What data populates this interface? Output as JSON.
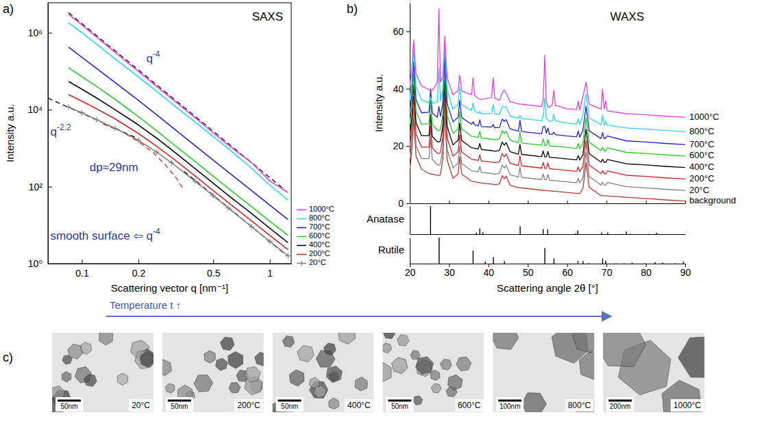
{
  "chart_data": [
    {
      "type": "line",
      "panel_label": "a)",
      "title": "SAXS",
      "x_label": "Scattering vector q [nm⁻¹]",
      "y_label": "Intensity a.u.",
      "log": true,
      "legend": "right",
      "xlim": [
        0.066,
        1.3
      ],
      "ylim": [
        1,
        6000000
      ],
      "xticks": [
        0.1,
        0.2,
        0.5,
        1
      ],
      "yticks": [
        {
          "value": 1,
          "label": "10⁰"
        },
        {
          "value": 100,
          "label": "10²"
        },
        {
          "value": 10000,
          "label": "10⁴"
        },
        {
          "value": 1000000,
          "label": "10⁶"
        }
      ],
      "x": [
        0.085,
        0.1,
        0.12,
        0.15,
        0.2,
        0.25,
        0.3,
        0.4,
        0.5,
        0.6,
        0.8,
        1.0,
        1.25
      ],
      "series": [
        {
          "name": "1000°C",
          "color": "#e040e0",
          "values": [
            3000000,
            1600000,
            760000,
            310000,
            98000,
            40000,
            19500,
            6200,
            2500,
            1200,
            420,
            140,
            70
          ]
        },
        {
          "name": "800°C",
          "color": "#20d8f0",
          "values": [
            1800000,
            1000000,
            500000,
            210000,
            71000,
            30000,
            14500,
            4800,
            2000,
            980,
            300,
            110,
            45
          ]
        },
        {
          "name": "700°C",
          "color": "#2020d0",
          "values": [
            420000,
            230000,
            117000,
            51000,
            17400,
            7400,
            3600,
            1170,
            490,
            240,
            79,
            33,
            14
          ]
        },
        {
          "name": "600°C",
          "color": "#20d020",
          "values": [
            123000,
            72000,
            40000,
            18600,
            6600,
            2800,
            1380,
            450,
            186,
            91,
            30,
            12.6,
            5.4
          ]
        },
        {
          "name": "400°C",
          "color": "#000000",
          "values": [
            54000,
            34000,
            20000,
            10000,
            4000,
            1820,
            910,
            295,
            123,
            60,
            20,
            8.3,
            3.5
          ]
        },
        {
          "name": "200°C",
          "color": "#e02020",
          "values": [
            24500,
            16600,
            10500,
            5800,
            2400,
            1120,
            575,
            190,
            79,
            39,
            12.9,
            5.4,
            2.3
          ]
        },
        {
          "name": "20°C",
          "color": "#808080",
          "marker": "plus",
          "values": [
            11700,
            8300,
            5500,
            3300,
            1600,
            790,
            420,
            138,
            58,
            28,
            9.1,
            3.8,
            1.6
          ]
        }
      ],
      "fits": [
        {
          "x": [
            0.085,
            1.2
          ],
          "values": [
            3300000,
            83
          ],
          "color": "#000000",
          "line_style": "dashed"
        },
        {
          "x": [
            0.066,
            0.2
          ],
          "values": [
            20000,
            1750
          ],
          "color": "#000000",
          "line_style": "dashed"
        },
        {
          "x": [
            0.35,
            1.2
          ],
          "values": [
            250,
            1.8
          ],
          "color": "#000000",
          "line_style": "dashed"
        },
        {
          "x": [
            0.13,
            0.16,
            0.2,
            0.24,
            0.28,
            0.32,
            0.35
          ],
          "values": [
            4200,
            2800,
            1500,
            760,
            355,
            160,
            80
          ],
          "color": "#e02020",
          "line_style": "dashed"
        }
      ],
      "annotations": [
        {
          "text": "q",
          "sup": "-4",
          "x": 0.22,
          "y": 200000,
          "color": "#2b3a9e"
        },
        {
          "text": "q",
          "sup": "-2.2",
          "x": 0.068,
          "y": 2500,
          "color": "#2b3a9e"
        },
        {
          "text": "dp≈29nm",
          "x": 0.11,
          "y": 300,
          "color": "#2b3a9e"
        },
        {
          "text": "smooth surface ⇦ q",
          "sup": "-4",
          "x": 0.068,
          "y": 5,
          "color": "#2b3a9e"
        }
      ]
    },
    {
      "type": "line",
      "panel_label": "b)",
      "title": "WAXS",
      "y_label": "Intensity a.u.",
      "legend": "right",
      "tick_labels": "y",
      "xlim": [
        20,
        90
      ],
      "ylim": [
        0,
        70
      ],
      "xticks": [
        20,
        30,
        40,
        50,
        60,
        70,
        80,
        90
      ],
      "yticks": [
        0,
        20,
        40,
        60
      ],
      "x": [
        20,
        20.5,
        21,
        21.6,
        23,
        24.9,
        25.3,
        25.7,
        27,
        27.4,
        27.8,
        28.4,
        28.9,
        29.5,
        31,
        32.3,
        32.7,
        33.2,
        35.7,
        36.1,
        36.5,
        37.4,
        37.8,
        38.2,
        40.8,
        41.2,
        41.6,
        42.8,
        43.5,
        44,
        44.5,
        45.5,
        47.6,
        48,
        48.4,
        53.5,
        53.9,
        54.3,
        54.7,
        55.1,
        55.5,
        56.2,
        56.6,
        57,
        60,
        62.4,
        62.8,
        63.2,
        64,
        64.8,
        65.6,
        68.6,
        69,
        69.4,
        69.8,
        70.2,
        75,
        80,
        85,
        90
      ],
      "series": [
        {
          "name": "1000°C",
          "color": "#e040e0",
          "values": [
            41.0,
            46.3,
            57.0,
            45.1,
            41.0,
            39.6,
            39.5,
            39.4,
            42.0,
            67.9,
            42.3,
            44.0,
            58.3,
            43.7,
            37.9,
            39.4,
            44.7,
            39.2,
            37.9,
            43.8,
            37.7,
            36.5,
            36.4,
            36.3,
            36.9,
            43.8,
            36.7,
            36.0,
            38.6,
            39.6,
            38.4,
            35.5,
            34.7,
            34.6,
            34.6,
            33.8,
            35.8,
            51.7,
            35.7,
            33.6,
            33.6,
            34.3,
            39.4,
            34.2,
            33.0,
            32.7,
            35.7,
            32.6,
            37.3,
            42.3,
            34.6,
            32.9,
            39.9,
            32.8,
            35.8,
            32.3,
            31.3,
            30.9,
            30.4,
            30.0
          ]
        },
        {
          "name": "800°C",
          "color": "#20d8f0",
          "values": [
            36.0,
            41.9,
            53.8,
            40.6,
            36.1,
            35.1,
            37.2,
            34.9,
            35.4,
            47.0,
            35.7,
            39.6,
            55.5,
            39.3,
            32.9,
            34.6,
            40.5,
            34.4,
            32.4,
            35.0,
            32.2,
            31.5,
            32.0,
            31.3,
            31.4,
            34.4,
            31.2,
            31.0,
            33.9,
            33.7,
            33.7,
            30.5,
            29.7,
            30.7,
            29.6,
            28.8,
            30.3,
            36.8,
            29.6,
            29.2,
            28.6,
            28.9,
            31.1,
            28.8,
            28.0,
            27.7,
            29.5,
            27.6,
            30.9,
            38.4,
            29.8,
            27.4,
            30.8,
            27.3,
            28.6,
            27.3,
            26.3,
            25.9,
            25.4,
            25.0
          ]
        },
        {
          "name": "700°C",
          "color": "#2020d0",
          "values": [
            31.5,
            37.4,
            49.3,
            36.1,
            31.6,
            31.8,
            39.9,
            31.6,
            30.0,
            33.8,
            30.3,
            35.1,
            51.0,
            34.8,
            28.4,
            30.1,
            36.0,
            29.9,
            27.6,
            28.4,
            27.4,
            27.0,
            29.1,
            26.8,
            26.6,
            27.5,
            26.4,
            26.5,
            29.4,
            28.6,
            29.2,
            26.0,
            25.2,
            29.0,
            25.1,
            24.3,
            26.8,
            26.9,
            24.5,
            26.3,
            24.1,
            24.1,
            24.8,
            24.0,
            23.5,
            23.2,
            25.3,
            23.1,
            25.5,
            33.9,
            25.3,
            22.6,
            24.7,
            22.5,
            22.9,
            23.5,
            21.8,
            21.4,
            20.9,
            20.5
          ]
        },
        {
          "name": "600°C",
          "color": "#20d020",
          "values": [
            27.5,
            33.4,
            45.3,
            32.1,
            27.6,
            27.8,
            35.9,
            27.6,
            25.5,
            25.4,
            25.8,
            31.1,
            47.0,
            30.8,
            24.4,
            26.1,
            32.0,
            25.9,
            23.4,
            23.3,
            23.2,
            23.0,
            25.1,
            22.8,
            22.4,
            22.3,
            22.2,
            22.5,
            25.4,
            24.3,
            25.2,
            22.0,
            21.2,
            25.0,
            21.1,
            20.3,
            22.5,
            20.2,
            20.2,
            22.3,
            20.1,
            20.0,
            19.9,
            19.9,
            19.5,
            19.2,
            20.9,
            19.1,
            21.0,
            29.9,
            21.3,
            18.4,
            19.5,
            18.3,
            18.3,
            19.4,
            17.8,
            17.4,
            16.9,
            16.5
          ]
        },
        {
          "name": "400°C",
          "color": "#000000",
          "values": [
            23.5,
            29.4,
            41.3,
            28.1,
            23.6,
            23.6,
            31.0,
            23.4,
            21.5,
            21.4,
            21.8,
            27.1,
            43.0,
            26.8,
            20.4,
            22.1,
            28.0,
            21.9,
            19.4,
            19.3,
            19.2,
            19.0,
            20.9,
            18.8,
            18.4,
            18.3,
            18.2,
            18.5,
            21.4,
            20.3,
            21.2,
            18.0,
            17.2,
            20.6,
            17.1,
            16.3,
            18.3,
            16.2,
            16.2,
            18.1,
            16.1,
            16.0,
            15.9,
            15.9,
            15.5,
            15.2,
            16.7,
            15.1,
            17.0,
            25.9,
            17.3,
            14.4,
            15.4,
            14.3,
            14.3,
            15.3,
            13.8,
            13.4,
            12.9,
            12.5
          ]
        },
        {
          "name": "200°C",
          "color": "#e02020",
          "values": [
            19.5,
            25.4,
            37.3,
            24.1,
            19.6,
            19.6,
            27.0,
            19.4,
            17.5,
            17.4,
            17.8,
            23.1,
            39.0,
            22.8,
            16.4,
            18.1,
            24.0,
            17.9,
            15.4,
            15.3,
            15.2,
            15.0,
            16.9,
            14.8,
            14.4,
            14.3,
            14.2,
            14.5,
            17.4,
            16.3,
            17.2,
            14.0,
            13.2,
            16.6,
            13.1,
            12.3,
            14.3,
            12.2,
            12.2,
            14.1,
            12.1,
            12.0,
            11.9,
            11.9,
            11.5,
            11.2,
            12.7,
            11.1,
            13.0,
            21.9,
            13.3,
            10.4,
            11.4,
            10.3,
            10.3,
            11.3,
            9.8,
            9.4,
            8.9,
            8.5
          ]
        },
        {
          "name": "20°C",
          "color": "#808080",
          "values": [
            15.5,
            21.4,
            33.3,
            20.1,
            15.6,
            15.6,
            23.0,
            15.4,
            13.5,
            13.4,
            13.8,
            19.1,
            35.0,
            18.8,
            12.4,
            14.1,
            20.0,
            13.9,
            11.4,
            11.3,
            11.2,
            11.0,
            12.9,
            10.8,
            10.4,
            10.3,
            10.2,
            10.5,
            13.4,
            12.3,
            13.2,
            10.0,
            9.2,
            12.6,
            9.1,
            8.3,
            10.3,
            8.2,
            8.2,
            10.1,
            8.1,
            8.0,
            7.9,
            7.9,
            7.5,
            7.2,
            8.7,
            7.1,
            9.0,
            17.9,
            9.3,
            6.4,
            7.4,
            6.3,
            6.3,
            7.3,
            5.8,
            5.4,
            4.9,
            4.5
          ]
        },
        {
          "name": "background",
          "color": "#b83a2e",
          "values": [
            11.8,
            17.7,
            29.6,
            16.4,
            11.9,
            10.4,
            10.3,
            10.2,
            9.8,
            9.7,
            10.1,
            15.4,
            31.3,
            15.1,
            8.7,
            10.4,
            16.3,
            10.2,
            7.7,
            7.6,
            7.5,
            7.3,
            7.2,
            7.1,
            6.7,
            6.6,
            6.5,
            6.8,
            9.7,
            8.6,
            9.5,
            6.3,
            5.5,
            5.4,
            5.4,
            4.6,
            4.6,
            4.5,
            4.5,
            4.4,
            4.4,
            4.3,
            4.2,
            4.2,
            3.8,
            3.5,
            3.5,
            3.4,
            5.3,
            14.2,
            5.6,
            2.7,
            2.7,
            2.6,
            2.6,
            2.6,
            2.1,
            1.7,
            1.2,
            0.8
          ]
        }
      ]
    },
    {
      "type": "stem",
      "title": "Anatase",
      "tick_labels": false,
      "color": "#000000",
      "xlim": [
        20,
        90
      ],
      "ylim": [
        0,
        100
      ],
      "yticks": [],
      "x": [
        25.28,
        36.95,
        37.8,
        38.57,
        48.05,
        53.89,
        55.06,
        62.12,
        62.69,
        68.76,
        70.31,
        74.03,
        75.03,
        76.02,
        80.73,
        82.66,
        83.15
      ],
      "values": [
        100,
        6,
        20,
        7,
        28,
        18,
        17,
        3,
        13,
        6,
        6,
        1,
        9,
        2,
        1,
        5,
        1
      ]
    },
    {
      "type": "stem",
      "title": "Rutile",
      "x_label": "Scattering angle 2θ [°]",
      "tick_labels": "x",
      "color": "#000000",
      "xlim": [
        20,
        90
      ],
      "ylim": [
        0,
        100
      ],
      "yticks": [],
      "xticks": [
        20,
        30,
        40,
        50,
        60,
        70,
        80,
        90
      ],
      "x": [
        27.45,
        36.09,
        39.19,
        41.25,
        44.05,
        54.32,
        56.64,
        62.74,
        64.04,
        65.48,
        69.01,
        69.79,
        72.41,
        74.41,
        76.51,
        79.82,
        82.33,
        84.26,
        87.46,
        89.55
      ],
      "values": [
        100,
        50,
        8,
        25,
        10,
        60,
        20,
        10,
        10,
        2,
        20,
        12,
        1,
        1,
        4,
        2,
        6,
        4,
        2,
        8
      ]
    }
  ],
  "micrographs": {
    "panel_label": "c)",
    "arrow_label": "Temperature t ↑",
    "images": [
      {
        "temperature": "20°C",
        "scale_bar": "50nm"
      },
      {
        "temperature": "200°C",
        "scale_bar": "50nm"
      },
      {
        "temperature": "400°C",
        "scale_bar": "50nm"
      },
      {
        "temperature": "600°C",
        "scale_bar": "50nm"
      },
      {
        "temperature": "800°C",
        "scale_bar": "100nm"
      },
      {
        "temperature": "1000°C",
        "scale_bar": "200nm"
      }
    ]
  }
}
